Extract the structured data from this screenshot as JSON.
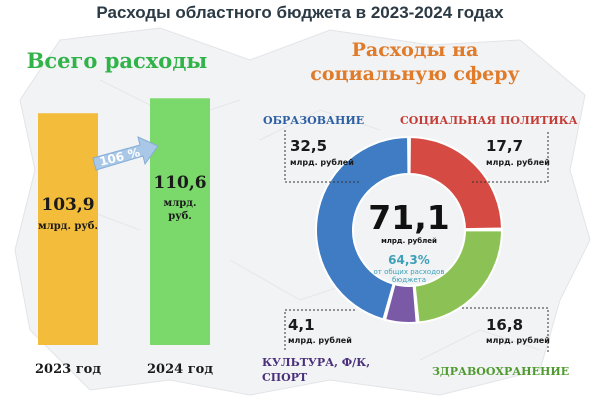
{
  "title": "Расходы областного бюджета в 2023-2024 годах",
  "left_heading": "Всего расходы",
  "right_heading": "Расходы на социальную сферу",
  "growth_label": "106 %",
  "colors": {
    "bar_2023": "#f3bc3a",
    "bar_2024": "#7bd86a",
    "education": "#3f7cc4",
    "social": "#d54a43",
    "health": "#8cc255",
    "culture": "#7a5aa6"
  },
  "center": {
    "value": "71,1",
    "unit": "млрд. рублей",
    "percent": "64,3%",
    "percent_note": "от общих расходов бюджета"
  },
  "chart_data": [
    {
      "type": "bar",
      "categories": [
        "2023 год",
        "2024 год"
      ],
      "values": [
        103.9,
        110.6
      ],
      "value_labels": [
        "103,9",
        "110,6"
      ],
      "unit_label": "млрд. руб.",
      "title": "Всего расходы",
      "ylim": [
        0,
        130
      ]
    },
    {
      "type": "pie",
      "title": "Расходы на социальную сферу",
      "categories": [
        "ОБРАЗОВАНИЕ",
        "СОЦИАЛЬНАЯ ПОЛИТИКА",
        "ЗДРАВООХРАНЕНИЕ",
        "КУЛЬТУРА, Ф/К, СПОРТ"
      ],
      "values": [
        32.5,
        17.7,
        16.8,
        4.1
      ],
      "value_labels": [
        "32,5",
        "17,7",
        "16,8",
        "4,1"
      ],
      "unit_label": "млрд. рублей",
      "total": "71,1"
    }
  ]
}
